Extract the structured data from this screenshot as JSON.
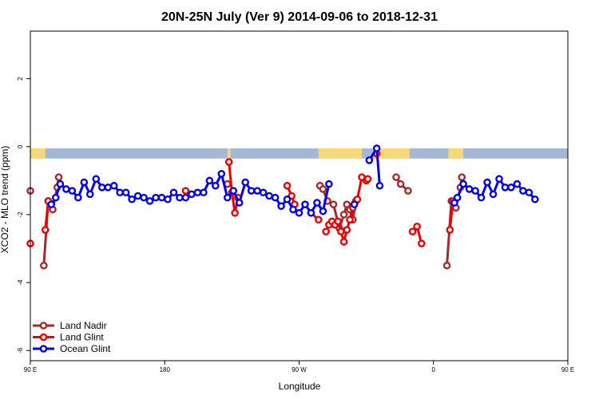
{
  "chart_data": {
    "type": "line",
    "title": "20N-25N July (Ver 9)   2014-09-06 to 2018-12-31",
    "xlabel": "Longitude",
    "ylabel": "XCO2 - MLO trend (ppm)",
    "xlim": [
      90,
      450
    ],
    "ylim": [
      -6.3,
      3.4
    ],
    "x_ticks": [
      {
        "value": 90,
        "label": "90 E"
      },
      {
        "value": 180,
        "label": "180"
      },
      {
        "value": 270,
        "label": "90 W"
      },
      {
        "value": 360,
        "label": "0"
      },
      {
        "value": 450,
        "label": "90 E"
      },
      {
        "value": 540,
        "label": "180"
      }
    ],
    "y_ticks": [
      {
        "value": 2,
        "label": "2"
      },
      {
        "value": 0,
        "label": "0"
      },
      {
        "value": -2,
        "label": "-2"
      },
      {
        "value": -4,
        "label": "-4"
      },
      {
        "value": -6,
        "label": "-6"
      }
    ],
    "legend_position": "bottom-left",
    "map_strip": {
      "y_top": -0.05,
      "y_bottom": -0.35,
      "ocean_color": "#a4b8d6",
      "land_color": "#f6d77a"
    },
    "series": [
      {
        "name": "Land Nadir",
        "color": "#a52a2a",
        "segments": [
          [
            [
              90,
              -1.3
            ]
          ],
          [
            [
              99,
              -3.5
            ],
            [
              102,
              -1.6
            ],
            [
              105,
              -1.85
            ],
            [
              108,
              -1.2
            ],
            [
              109,
              -0.9
            ]
          ],
          [
            [
              222,
              -1.1
            ]
          ],
          [
            [
              284,
              -1.15
            ],
            [
              286,
              -1.25
            ],
            [
              289,
              -1.6
            ],
            [
              293,
              -1.7
            ],
            [
              297,
              -2.4
            ],
            [
              300,
              -2.0
            ],
            [
              302,
              -1.7
            ],
            [
              304,
              -1.85
            ],
            [
              306,
              -2.15
            ],
            [
              308,
              -1.6
            ]
          ],
          [
            [
              335,
              -0.9
            ],
            [
              338,
              -1.1
            ],
            [
              343,
              -1.3
            ]
          ],
          [
            [
              369,
              -3.5
            ],
            [
              372,
              -1.6
            ],
            [
              375,
              -1.8
            ],
            [
              378,
              -1.2
            ],
            [
              379,
              -0.9
            ]
          ]
        ]
      },
      {
        "name": "Land Glint",
        "color": "#ee0000",
        "segments": [
          [
            [
              90,
              -2.85
            ]
          ],
          [
            [
              100,
              -2.45
            ],
            [
              102,
              -1.6
            ]
          ],
          [
            [
              194,
              -1.3
            ]
          ],
          [
            [
              223,
              -0.45
            ],
            [
              225,
              -1.35
            ],
            [
              227,
              -1.95
            ],
            [
              229,
              -1.5
            ]
          ],
          [
            [
              262,
              -1.15
            ],
            [
              265,
              -1.45
            ],
            [
              267,
              -1.7
            ]
          ],
          [
            [
              278,
              -1.95
            ],
            [
              283,
              -2.15
            ]
          ],
          [
            [
              288,
              -2.5
            ],
            [
              290,
              -2.3
            ],
            [
              292,
              -2.2
            ],
            [
              294,
              -2.3
            ],
            [
              296,
              -2.2
            ],
            [
              298,
              -2.5
            ],
            [
              300,
              -2.8
            ],
            [
              302,
              -2.45
            ],
            [
              304,
              -2.15
            ],
            [
              306,
              -1.8
            ],
            [
              309,
              -1.55
            ],
            [
              312,
              -0.9
            ],
            [
              315,
              -1.0
            ],
            [
              316,
              -0.95
            ]
          ],
          [
            [
              322,
              -0.2
            ]
          ],
          [
            [
              346,
              -2.5
            ],
            [
              349,
              -2.35
            ],
            [
              352,
              -2.85
            ]
          ],
          [
            [
              371,
              -2.45
            ],
            [
              373,
              -1.6
            ]
          ]
        ]
      },
      {
        "name": "Ocean Glint",
        "color": "#0000ee",
        "segments": [
          [
            [
              104,
              -1.7
            ],
            [
              107,
              -1.5
            ],
            [
              110,
              -1.1
            ],
            [
              114,
              -1.25
            ],
            [
              118,
              -1.3
            ],
            [
              122,
              -1.5
            ],
            [
              126,
              -1.05
            ],
            [
              130,
              -1.4
            ],
            [
              134,
              -0.95
            ],
            [
              138,
              -1.2
            ],
            [
              142,
              -1.2
            ],
            [
              146,
              -1.15
            ],
            [
              150,
              -1.35
            ],
            [
              154,
              -1.35
            ],
            [
              158,
              -1.55
            ],
            [
              162,
              -1.45
            ],
            [
              166,
              -1.5
            ],
            [
              170,
              -1.6
            ],
            [
              174,
              -1.5
            ],
            [
              178,
              -1.5
            ],
            [
              182,
              -1.55
            ],
            [
              186,
              -1.35
            ],
            [
              190,
              -1.5
            ],
            [
              194,
              -1.5
            ],
            [
              198,
              -1.4
            ],
            [
              202,
              -1.35
            ],
            [
              206,
              -1.35
            ],
            [
              210,
              -1.0
            ],
            [
              214,
              -1.15
            ],
            [
              218,
              -0.8
            ],
            [
              222,
              -1.5
            ],
            [
              226,
              -1.3
            ],
            [
              230,
              -1.65
            ],
            [
              234,
              -1.05
            ],
            [
              238,
              -1.3
            ],
            [
              242,
              -1.3
            ],
            [
              246,
              -1.35
            ],
            [
              250,
              -1.45
            ],
            [
              254,
              -1.5
            ],
            [
              258,
              -1.75
            ],
            [
              262,
              -1.55
            ],
            [
              266,
              -1.85
            ],
            [
              270,
              -1.95
            ],
            [
              274,
              -1.7
            ],
            [
              278,
              -1.95
            ],
            [
              282,
              -1.65
            ],
            [
              286,
              -1.9
            ],
            [
              290,
              -1.1
            ]
          ],
          [
            [
              307,
              -1.7
            ]
          ],
          [
            [
              317,
              -0.4
            ],
            [
              322,
              -0.05
            ],
            [
              324,
              -1.15
            ]
          ],
          [
            [
              374,
              -1.65
            ],
            [
              376,
              -1.5
            ],
            [
              380,
              -1.1
            ],
            [
              384,
              -1.25
            ],
            [
              388,
              -1.3
            ],
            [
              392,
              -1.5
            ],
            [
              396,
              -1.05
            ],
            [
              400,
              -1.4
            ],
            [
              404,
              -0.95
            ],
            [
              408,
              -1.2
            ],
            [
              412,
              -1.2
            ],
            [
              416,
              -1.1
            ],
            [
              420,
              -1.3
            ],
            [
              424,
              -1.35
            ],
            [
              428,
              -1.55
            ]
          ]
        ]
      }
    ]
  }
}
